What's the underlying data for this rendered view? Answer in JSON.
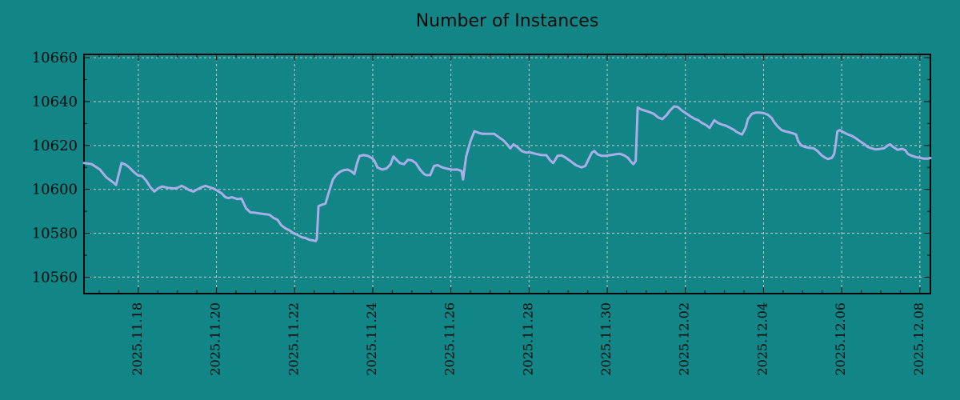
{
  "title": "Number of Instances",
  "colors": {
    "background": "#128686",
    "line": "#a9ade8",
    "grid": "#c8c8c8",
    "border": "#050505",
    "text": "#0a0a0a"
  },
  "chart_data": {
    "type": "line",
    "title": "Number of Instances",
    "xlabel": "",
    "ylabel": "",
    "legend": "none",
    "grid": {
      "style": "dashed",
      "on": "major-ticks"
    },
    "x_axis": {
      "unit": "date (value = day offset from 2025-11-01; 31+ runs into December)",
      "lim": [
        16.61,
        38.27
      ],
      "major_ticks": [
        {
          "value": 18,
          "label": "2025.11.18"
        },
        {
          "value": 20,
          "label": "2025.11.20"
        },
        {
          "value": 22,
          "label": "2025.11.22"
        },
        {
          "value": 24,
          "label": "2025.11.24"
        },
        {
          "value": 26,
          "label": "2025.11.26"
        },
        {
          "value": 28,
          "label": "2025.11.28"
        },
        {
          "value": 30,
          "label": "2025.11.30"
        },
        {
          "value": 32,
          "label": "2025.12.02"
        },
        {
          "value": 34,
          "label": "2025.12.04"
        },
        {
          "value": 36,
          "label": "2025.12.06"
        },
        {
          "value": 38,
          "label": "2025.12.08"
        }
      ],
      "minor_step": 0.5
    },
    "y_axis": {
      "lim": [
        10552.5,
        10661.5
      ],
      "major_ticks": [
        10560,
        10580,
        10600,
        10620,
        10640,
        10660
      ],
      "minor_step": 10
    },
    "series": [
      {
        "name": "instances",
        "color": "#a9ade8",
        "points": [
          [
            16.61,
            10612
          ],
          [
            16.81,
            10611.5
          ],
          [
            17.02,
            10609
          ],
          [
            17.18,
            10605.5
          ],
          [
            17.37,
            10603
          ],
          [
            17.43,
            10602
          ],
          [
            17.57,
            10612
          ],
          [
            17.67,
            10611.3
          ],
          [
            17.77,
            10610
          ],
          [
            17.88,
            10608
          ],
          [
            17.98,
            10606.5
          ],
          [
            18.1,
            10606
          ],
          [
            18.2,
            10604
          ],
          [
            18.31,
            10601
          ],
          [
            18.41,
            10599
          ],
          [
            18.51,
            10600.5
          ],
          [
            18.61,
            10601.3
          ],
          [
            18.76,
            10600.7
          ],
          [
            18.9,
            10600.4
          ],
          [
            19.0,
            10600.7
          ],
          [
            19.11,
            10601.6
          ],
          [
            19.21,
            10600.7
          ],
          [
            19.31,
            10599.6
          ],
          [
            19.41,
            10599
          ],
          [
            19.51,
            10600
          ],
          [
            19.62,
            10601
          ],
          [
            19.72,
            10601.6
          ],
          [
            19.82,
            10601
          ],
          [
            19.92,
            10600.4
          ],
          [
            20.03,
            10599.3
          ],
          [
            20.13,
            10598.2
          ],
          [
            20.23,
            10596.4
          ],
          [
            20.31,
            10596
          ],
          [
            20.39,
            10596.4
          ],
          [
            20.54,
            10595.6
          ],
          [
            20.64,
            10595.8
          ],
          [
            20.76,
            10591.3
          ],
          [
            20.87,
            10589.5
          ],
          [
            20.97,
            10589.4
          ],
          [
            21.11,
            10589
          ],
          [
            21.25,
            10588.7
          ],
          [
            21.36,
            10588.4
          ],
          [
            21.46,
            10587
          ],
          [
            21.56,
            10586.2
          ],
          [
            21.66,
            10583.6
          ],
          [
            21.77,
            10582.2
          ],
          [
            21.87,
            10581.3
          ],
          [
            21.97,
            10580
          ],
          [
            22.07,
            10579.3
          ],
          [
            22.18,
            10578.2
          ],
          [
            22.28,
            10577.8
          ],
          [
            22.38,
            10577
          ],
          [
            22.48,
            10576.7
          ],
          [
            22.54,
            10576.4
          ],
          [
            22.57,
            10577.5
          ],
          [
            22.61,
            10592.3
          ],
          [
            22.7,
            10593
          ],
          [
            22.79,
            10593.5
          ],
          [
            22.88,
            10599
          ],
          [
            22.98,
            10604.5
          ],
          [
            23.06,
            10606.5
          ],
          [
            23.16,
            10608
          ],
          [
            23.26,
            10608.8
          ],
          [
            23.36,
            10609
          ],
          [
            23.45,
            10608.2
          ],
          [
            23.53,
            10607
          ],
          [
            23.6,
            10612
          ],
          [
            23.66,
            10615.2
          ],
          [
            23.77,
            10615.6
          ],
          [
            23.87,
            10615.3
          ],
          [
            23.98,
            10614.2
          ],
          [
            24.04,
            10613.1
          ],
          [
            24.12,
            10610
          ],
          [
            24.24,
            10609
          ],
          [
            24.35,
            10609.5
          ],
          [
            24.45,
            10611.3
          ],
          [
            24.53,
            10615
          ],
          [
            24.59,
            10613.8
          ],
          [
            24.69,
            10612
          ],
          [
            24.8,
            10611.5
          ],
          [
            24.9,
            10613.5
          ],
          [
            25.0,
            10613.2
          ],
          [
            25.1,
            10612
          ],
          [
            25.21,
            10609
          ],
          [
            25.31,
            10607
          ],
          [
            25.37,
            10606.5
          ],
          [
            25.47,
            10606.5
          ],
          [
            25.57,
            10610.7
          ],
          [
            25.66,
            10611
          ],
          [
            25.78,
            10610
          ],
          [
            25.88,
            10609.5
          ],
          [
            26.02,
            10609
          ],
          [
            26.17,
            10609
          ],
          [
            26.27,
            10608.4
          ],
          [
            26.31,
            10604.5
          ],
          [
            26.39,
            10615
          ],
          [
            26.5,
            10622
          ],
          [
            26.6,
            10626.5
          ],
          [
            26.7,
            10625.8
          ],
          [
            26.8,
            10625.3
          ],
          [
            26.95,
            10625.3
          ],
          [
            27.11,
            10625.3
          ],
          [
            27.21,
            10624
          ],
          [
            27.35,
            10622.2
          ],
          [
            27.46,
            10620
          ],
          [
            27.52,
            10618.7
          ],
          [
            27.6,
            10620.5
          ],
          [
            27.7,
            10619.3
          ],
          [
            27.81,
            10617.5
          ],
          [
            27.91,
            10616.8
          ],
          [
            28.03,
            10616.8
          ],
          [
            28.17,
            10616.2
          ],
          [
            28.32,
            10615.6
          ],
          [
            28.44,
            10615.6
          ],
          [
            28.54,
            10613.2
          ],
          [
            28.62,
            10612
          ],
          [
            28.73,
            10615.3
          ],
          [
            28.83,
            10615.5
          ],
          [
            28.93,
            10614.5
          ],
          [
            29.05,
            10613
          ],
          [
            29.2,
            10611
          ],
          [
            29.34,
            10610
          ],
          [
            29.44,
            10610.7
          ],
          [
            29.54,
            10614.4
          ],
          [
            29.61,
            10616.8
          ],
          [
            29.67,
            10617.5
          ],
          [
            29.75,
            10616
          ],
          [
            29.85,
            10615.3
          ],
          [
            29.97,
            10615.3
          ],
          [
            30.08,
            10615.6
          ],
          [
            30.22,
            10616
          ],
          [
            30.32,
            10616.2
          ],
          [
            30.42,
            10615.6
          ],
          [
            30.53,
            10614.4
          ],
          [
            30.61,
            10612.5
          ],
          [
            30.67,
            10611.5
          ],
          [
            30.73,
            10613
          ],
          [
            30.78,
            10637.3
          ],
          [
            30.88,
            10636.3
          ],
          [
            30.98,
            10635.8
          ],
          [
            31.08,
            10635.2
          ],
          [
            31.19,
            10634.4
          ],
          [
            31.3,
            10632.8
          ],
          [
            31.41,
            10632
          ],
          [
            31.51,
            10633.7
          ],
          [
            31.61,
            10636
          ],
          [
            31.71,
            10637.8
          ],
          [
            31.8,
            10637.6
          ],
          [
            31.92,
            10635.8
          ],
          [
            32.02,
            10634.6
          ],
          [
            32.12,
            10633.4
          ],
          [
            32.23,
            10632.2
          ],
          [
            32.33,
            10631.5
          ],
          [
            32.43,
            10630.2
          ],
          [
            32.53,
            10629.3
          ],
          [
            32.62,
            10628
          ],
          [
            32.68,
            10629.8
          ],
          [
            32.74,
            10631.5
          ],
          [
            32.84,
            10630.2
          ],
          [
            32.94,
            10629.5
          ],
          [
            33.04,
            10629
          ],
          [
            33.15,
            10628
          ],
          [
            33.25,
            10627
          ],
          [
            33.29,
            10626.4
          ],
          [
            33.39,
            10625.5
          ],
          [
            33.45,
            10625
          ],
          [
            33.54,
            10628
          ],
          [
            33.6,
            10632
          ],
          [
            33.7,
            10634.4
          ],
          [
            33.8,
            10635
          ],
          [
            33.9,
            10635
          ],
          [
            34.01,
            10634.7
          ],
          [
            34.11,
            10634
          ],
          [
            34.21,
            10632.5
          ],
          [
            34.27,
            10630.7
          ],
          [
            34.35,
            10628.9
          ],
          [
            34.46,
            10627
          ],
          [
            34.56,
            10626.4
          ],
          [
            34.66,
            10626
          ],
          [
            34.76,
            10625.5
          ],
          [
            34.83,
            10625
          ],
          [
            34.89,
            10621.8
          ],
          [
            34.97,
            10620
          ],
          [
            35.07,
            10619.3
          ],
          [
            35.18,
            10618.9
          ],
          [
            35.28,
            10618.7
          ],
          [
            35.38,
            10617.5
          ],
          [
            35.48,
            10615.6
          ],
          [
            35.58,
            10614.4
          ],
          [
            35.65,
            10613.8
          ],
          [
            35.75,
            10614.4
          ],
          [
            35.81,
            10616.2
          ],
          [
            35.85,
            10621
          ],
          [
            35.89,
            10626.4
          ],
          [
            35.95,
            10627
          ],
          [
            36.05,
            10626
          ],
          [
            36.16,
            10625
          ],
          [
            36.26,
            10624.4
          ],
          [
            36.36,
            10623.3
          ],
          [
            36.46,
            10622
          ],
          [
            36.57,
            10620.7
          ],
          [
            36.67,
            10619.3
          ],
          [
            36.77,
            10618.7
          ],
          [
            36.87,
            10618.2
          ],
          [
            36.98,
            10618.4
          ],
          [
            37.08,
            10618.7
          ],
          [
            37.18,
            10620
          ],
          [
            37.24,
            10620.5
          ],
          [
            37.32,
            10619.3
          ],
          [
            37.43,
            10618
          ],
          [
            37.55,
            10618.5
          ],
          [
            37.63,
            10617.8
          ],
          [
            37.69,
            10616.2
          ],
          [
            37.79,
            10615.3
          ],
          [
            37.9,
            10614.7
          ],
          [
            38.0,
            10614.4
          ],
          [
            38.1,
            10614
          ],
          [
            38.2,
            10614
          ],
          [
            38.27,
            10614.3
          ]
        ]
      }
    ]
  }
}
